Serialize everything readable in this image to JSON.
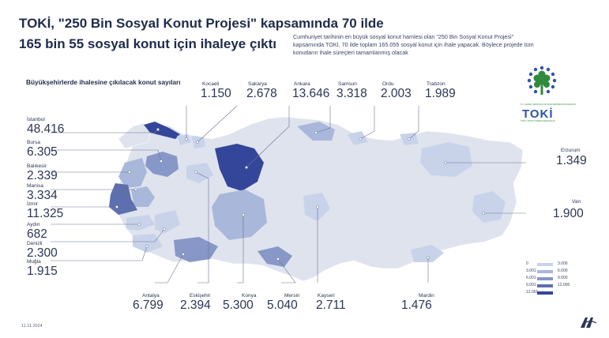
{
  "title_line1": "TOKİ, \"250 Bin Sosyal Konut Projesi\" kapsamında 70 ilde",
  "title_line2": "165 bin 55 sosyal konut için ihaleye çıktı",
  "intro": "Cumhuriyet tarihinin en büyük sosyal konut hamlesi olan \"250 Bin Sosyal Konut Projesi\" kapsamında TOKİ, 70 ilde toplam 165.055 sosyal konut için ihale yapacak. Böylece projede tüm konutların ihale süreçleri tamamlanmış olacak",
  "subtitle": "Büyükşehirlerde ihalesine çıkılacak konut sayıları",
  "date": "11.11.2024",
  "logo": {
    "word": "TOKİ",
    "small_text": "T.C. ÇEVRE, ŞEHİRCİLİK VE İKLİM DEĞİŞİKLİĞİ BAKANLIĞI",
    "tiny_text": "TOPLU KONUT İDARESİ BAŞKANLIĞI",
    "icon": "tree-logo-icon"
  },
  "agency_icon": "aa-logo-icon",
  "colors": {
    "map_base": "#dfe3ee",
    "level1": "#c8d3ea",
    "level2": "#a9b7da",
    "level3": "#8797c7",
    "level4": "#5e6fae",
    "level5": "#34469a",
    "text": "#1f2b4a"
  },
  "legend": [
    {
      "lo": "0",
      "hi": "3.000"
    },
    {
      "lo": "3.001",
      "hi": "6.000"
    },
    {
      "lo": "6.001",
      "hi": "9.000"
    },
    {
      "lo": "9.001",
      "hi": "12.000"
    },
    {
      "lo": "12.001",
      "hi": ""
    }
  ],
  "cities": {
    "istanbul": {
      "name": "İstanbul",
      "value": "48.416"
    },
    "bursa": {
      "name": "Bursa",
      "value": "6.305"
    },
    "balikesir": {
      "name": "Balıkesir",
      "value": "2.339"
    },
    "manisa": {
      "name": "Manisa",
      "value": "3.334"
    },
    "izmir": {
      "name": "İzmir",
      "value": "11.325"
    },
    "aydin": {
      "name": "Aydın",
      "value": "682"
    },
    "denizli": {
      "name": "Denizli",
      "value": "2.300"
    },
    "mugla": {
      "name": "Muğla",
      "value": "1.915"
    },
    "kocaeli": {
      "name": "Kocaeli",
      "value": "1.150"
    },
    "sakarya": {
      "name": "Sakarya",
      "value": "2.678"
    },
    "ankara": {
      "name": "Ankara",
      "value": "13.646"
    },
    "samsun": {
      "name": "Samsun",
      "value": "3.318"
    },
    "ordu": {
      "name": "Ordu",
      "value": "2.003"
    },
    "trabzon": {
      "name": "Trabzon",
      "value": "1.989"
    },
    "erzurum": {
      "name": "Erzurum",
      "value": "1.349"
    },
    "van": {
      "name": "Van",
      "value": "1.900"
    },
    "antalya": {
      "name": "Antalya",
      "value": "6.799"
    },
    "eskisehir": {
      "name": "Eskişehir",
      "value": "2.394"
    },
    "konya": {
      "name": "Konya",
      "value": "5.300"
    },
    "mersin": {
      "name": "Mersin",
      "value": "5.040"
    },
    "kayseri": {
      "name": "Kayseri",
      "value": "2.711"
    },
    "mardin": {
      "name": "Mardin",
      "value": "1.476"
    }
  }
}
